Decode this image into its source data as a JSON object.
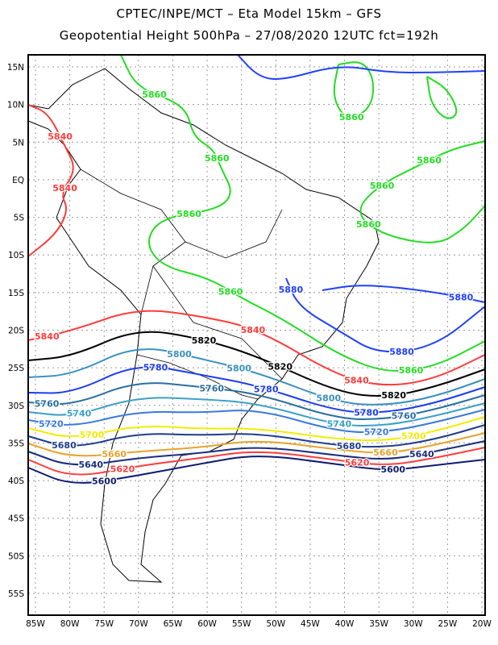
{
  "header": {
    "line1": "CPTEC/INPE/MCT –  Eta Model 15km – GFS",
    "line2": "Geopotential Height 500hPa – 27/08/2020 12UTC fct=192h"
  },
  "axes": {
    "lat_labels": [
      "15N",
      "10N",
      "5N",
      "EQ",
      "5S",
      "10S",
      "15S",
      "20S",
      "25S",
      "30S",
      "35S",
      "40S",
      "45S",
      "50S",
      "55S"
    ],
    "lon_labels": [
      "85W",
      "80W",
      "75W",
      "70W",
      "65W",
      "60W",
      "55W",
      "50W",
      "45W",
      "40W",
      "35W",
      "30W",
      "25W",
      "20W"
    ]
  },
  "contours": [
    {
      "level": "5600",
      "color": "#0c1c70"
    },
    {
      "level": "5620",
      "color": "#ff3b3b"
    },
    {
      "level": "5640",
      "color": "#1a2d80"
    },
    {
      "level": "5660",
      "color": "#e8a32a"
    },
    {
      "level": "5680",
      "color": "#1e3c8c"
    },
    {
      "level": "5700",
      "color": "#f0ee00"
    },
    {
      "level": "5720",
      "color": "#3a78e0"
    },
    {
      "level": "5740",
      "color": "#3aa0c8"
    },
    {
      "level": "5760",
      "color": "#2a6ea0"
    },
    {
      "level": "5780",
      "color": "#1a3cf0"
    },
    {
      "level": "5800",
      "color": "#3a90c0"
    },
    {
      "level": "5820",
      "color": "#000000"
    },
    {
      "level": "5840",
      "color": "#ff3b3b"
    },
    {
      "level": "5860",
      "color": "#22dd22"
    },
    {
      "level": "5880",
      "color": "#2040ff"
    }
  ],
  "labels": [
    "5600",
    "5620",
    "5640",
    "5660",
    "5680",
    "5700",
    "5720",
    "5740",
    "5760",
    "5780",
    "5800",
    "5820",
    "5840",
    "5600",
    "5620",
    "5640",
    "5660",
    "5680",
    "5700",
    "5720",
    "5740",
    "5760",
    "5780",
    "5800",
    "5820",
    "5840",
    "5860",
    "5880",
    "5840",
    "5820",
    "5800",
    "5780",
    "5760",
    "5840",
    "5860",
    "5860",
    "5860",
    "5860",
    "5860",
    "5860",
    "5860",
    "5860",
    "5880",
    "5880",
    "5840"
  ]
}
